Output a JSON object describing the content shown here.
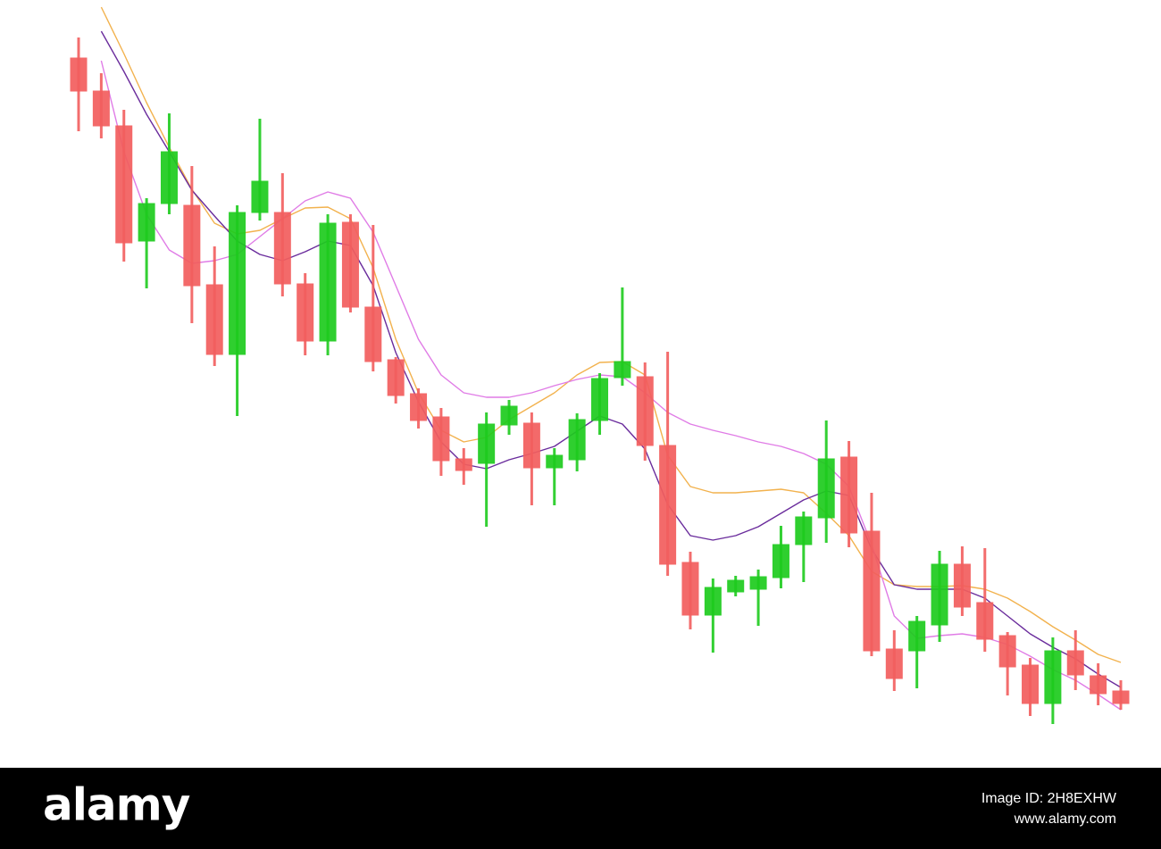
{
  "chart_data": {
    "type": "candlestick",
    "categories": [
      null,
      null,
      null,
      null,
      null,
      null,
      null,
      null,
      null,
      null,
      null,
      null,
      null,
      null,
      null,
      null,
      null,
      null,
      null,
      null,
      null,
      null,
      null,
      null,
      null,
      null,
      null,
      null,
      null,
      null,
      null,
      null,
      null,
      null,
      null,
      null,
      null,
      null,
      null,
      null,
      null,
      null,
      null,
      null,
      null,
      null,
      null
    ],
    "open": [
      835,
      798,
      759,
      630,
      672,
      670,
      581,
      503,
      662,
      662,
      582,
      518,
      651,
      556,
      497,
      459,
      433,
      386,
      381,
      424,
      426,
      376,
      385,
      429,
      477,
      478,
      401,
      270,
      211,
      237,
      240,
      253,
      290,
      320,
      388,
      305,
      173,
      171,
      200,
      268,
      225,
      188,
      155,
      112,
      171,
      143,
      126
    ],
    "high": [
      858,
      818,
      777,
      678,
      773,
      714,
      624,
      670,
      767,
      706,
      594,
      660,
      660,
      648,
      500,
      465,
      443,
      398,
      438,
      452,
      438,
      398,
      437,
      482,
      578,
      494,
      506,
      282,
      252,
      255,
      262,
      311,
      327,
      429,
      406,
      348,
      194,
      210,
      283,
      288,
      286,
      192,
      163,
      186,
      194,
      157,
      138
    ],
    "low": [
      753,
      745,
      607,
      577,
      660,
      538,
      490,
      434,
      653,
      568,
      502,
      502,
      550,
      484,
      448,
      420,
      367,
      357,
      310,
      413,
      334,
      334,
      372,
      413,
      468,
      384,
      255,
      195,
      169,
      232,
      199,
      241,
      248,
      292,
      287,
      165,
      126,
      129,
      181,
      210,
      170,
      121,
      98,
      89,
      127,
      110,
      105
    ],
    "close": [
      798,
      759,
      628,
      672,
      730,
      580,
      503,
      662,
      697,
      582,
      518,
      650,
      556,
      495,
      457,
      429,
      384,
      373,
      425,
      445,
      376,
      390,
      430,
      476,
      495,
      401,
      268,
      211,
      242,
      250,
      254,
      290,
      321,
      386,
      303,
      171,
      140,
      204,
      268,
      220,
      184,
      153,
      112,
      171,
      144,
      123,
      112
    ],
    "up_color": "#1ecb1e",
    "down_color": "#f25e5e",
    "series": [
      {
        "color": "#f2b24e",
        "values": [
          null,
          892,
          840,
          785,
          735,
          688,
          650,
          638,
          642,
          655,
          667,
          668,
          655,
          600,
          520,
          460,
          418,
          405,
          410,
          430,
          445,
          460,
          480,
          494,
          495,
          480,
          390,
          355,
          348,
          348,
          350,
          352,
          348,
          325,
          300,
          260,
          245,
          243,
          243,
          244,
          240,
          230,
          215,
          198,
          183,
          167,
          158
        ]
      },
      {
        "color": "#6a2c9c",
        "values": [
          null,
          865,
          820,
          772,
          730,
          687,
          658,
          630,
          615,
          608,
          618,
          630,
          625,
          580,
          505,
          450,
          405,
          380,
          375,
          385,
          392,
          400,
          417,
          434,
          425,
          397,
          335,
          300,
          295,
          300,
          310,
          325,
          340,
          350,
          345,
          285,
          245,
          240,
          240,
          240,
          230,
          210,
          190,
          175,
          162,
          145,
          130
        ]
      },
      {
        "color": "#e07ce6",
        "values": [
          null,
          832,
          730,
          660,
          620,
          605,
          608,
          615,
          635,
          655,
          675,
          685,
          678,
          640,
          580,
          520,
          480,
          460,
          455,
          455,
          460,
          468,
          475,
          480,
          478,
          460,
          438,
          425,
          418,
          412,
          405,
          400,
          392,
          380,
          355,
          290,
          210,
          185,
          188,
          190,
          186,
          178,
          165,
          150,
          138,
          122,
          105
        ]
      }
    ],
    "ylim": [
      0,
      900
    ]
  },
  "footer": {
    "brand": "alamy",
    "image_id": "Image ID: 2H8EXHW",
    "url": "www.alamy.com"
  }
}
